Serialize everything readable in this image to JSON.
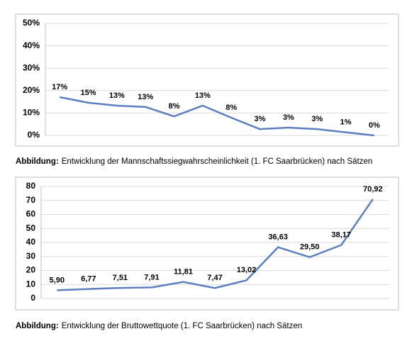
{
  "chart_data": [
    {
      "type": "line",
      "categories": [
        null,
        null,
        null,
        null,
        null,
        null,
        null,
        null,
        null,
        null,
        null,
        null
      ],
      "series": [
        {
          "color": "#5b7fbf",
          "values": [
            17.1,
            14.6,
            13.3,
            12.7,
            8.5,
            13.3,
            7.9,
            2.8,
            3.5,
            2.8,
            1.4,
            0
          ],
          "value_labels": [
            "17%",
            "15%",
            "13%",
            "13%",
            "8%",
            "13%",
            "8%",
            "3%",
            "3%",
            "3%",
            "1%",
            "0%"
          ]
        }
      ],
      "ylim": [
        0,
        50
      ],
      "yticks": [
        {
          "value": 0,
          "label": "0%"
        },
        {
          "value": 10,
          "label": "10%"
        },
        {
          "value": 20,
          "label": "20%"
        },
        {
          "value": 30,
          "label": "30%"
        },
        {
          "value": 40,
          "label": "40%"
        },
        {
          "value": 50,
          "label": "50%"
        }
      ],
      "grid": true,
      "caption_label": "Abbildung:",
      "caption": "Entwicklung der Mannschaftssiegwahrscheinlichkeit (1. FC Saarbrücken) nach Sätzen"
    },
    {
      "type": "line",
      "categories": [
        null,
        null,
        null,
        null,
        null,
        null,
        null,
        null,
        null,
        null,
        null
      ],
      "series": [
        {
          "color": "#5b7fbf",
          "values": [
            5.9,
            6.77,
            7.51,
            7.91,
            11.81,
            7.47,
            13.02,
            36.63,
            29.5,
            38.17,
            70.92
          ],
          "value_labels": [
            "5,90",
            "6,77",
            "7,51",
            "7,91",
            "11,81",
            "7,47",
            "13,02",
            "36,63",
            "29,50",
            "38,17",
            "70,92"
          ]
        }
      ],
      "ylim": [
        0,
        80
      ],
      "yticks": [
        0,
        10,
        20,
        30,
        40,
        50,
        60,
        70,
        80
      ],
      "grid": true,
      "caption_label": "Abbildung:",
      "caption": "Entwicklung der Bruttowettquote (1. FC Saarbrücken) nach Sätzen"
    }
  ]
}
